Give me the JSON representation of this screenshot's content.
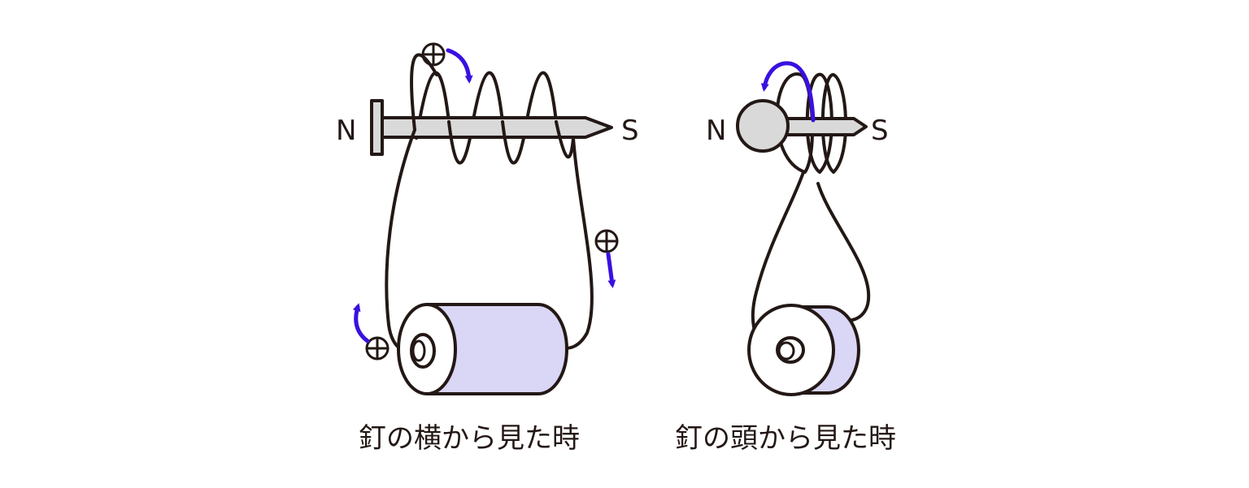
{
  "left_view": {
    "caption": "釘の横から見た時",
    "pole_n": "N",
    "pole_s": "S"
  },
  "right_view": {
    "caption": "釘の頭から見た時",
    "pole_n": "N",
    "pole_s": "S"
  },
  "colors": {
    "line": "#231815",
    "nail_fill": "#d9d9d9",
    "battery_fill": "#d9d6f6",
    "arrow": "#3a10e0"
  },
  "icons": {
    "positive_symbol": "circled-plus-icon",
    "current_arrow": "curved-arrow-icon"
  }
}
